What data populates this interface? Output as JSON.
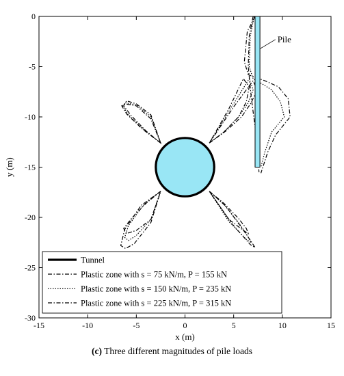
{
  "caption": {
    "letter": "(c)",
    "text": "Three different magnitudes of pile loads"
  },
  "chart_data": {
    "type": "line",
    "title": "",
    "xlabel": "x (m)",
    "ylabel": "y (m)",
    "xlim": [
      -15,
      15
    ],
    "ylim": [
      -30,
      0
    ],
    "xticks": [
      -15,
      -10,
      -5,
      0,
      5,
      10,
      15
    ],
    "yticks": [
      0,
      -5,
      -10,
      -15,
      -20,
      -25,
      -30
    ],
    "grid": false,
    "legend_position": "bottom",
    "colors": {
      "fill": "#99e6f5",
      "line": "#000000"
    },
    "tunnel": {
      "name": "Tunnel",
      "center": [
        0,
        -15
      ],
      "radius": 3
    },
    "pile": {
      "x": [
        7.2,
        7.7
      ],
      "y": [
        0,
        -15
      ]
    },
    "annotations": [
      {
        "text": "Pile",
        "point": [
          7.6,
          -3.2
        ],
        "label_at": [
          9.5,
          -2.3
        ]
      }
    ],
    "series": [
      {
        "name": "Plastic zone with s = 75 kN/m, P = 155 kN",
        "style": "dash-dot",
        "lobes": [
          {
            "x": [
              -2.5,
              -4,
              -5.5,
              -6.3,
              -6,
              -5,
              -3.5,
              -2.5
            ],
            "y": [
              -12.6,
              -11.4,
              -9.9,
              -8.9,
              -8.4,
              -8.7,
              -9.8,
              -12.6
            ]
          },
          {
            "x": [
              2.5,
              4,
              5.5,
              6.3,
              6.6,
              6,
              4.5,
              2.5
            ],
            "y": [
              -12.6,
              -11.5,
              -10,
              -8.5,
              -7,
              -6.2,
              -9.2,
              -12.6
            ]
          },
          {
            "x": [
              -2.5,
              -4,
              -5.5,
              -6.3,
              -6,
              -5,
              -3.5,
              -2.5
            ],
            "y": [
              -17.4,
              -18.6,
              -20.1,
              -21.1,
              -21.6,
              -21.3,
              -20.2,
              -17.4
            ]
          },
          {
            "x": [
              2.5,
              4,
              5.5,
              6.3,
              6.5,
              6,
              4.5,
              2.5
            ],
            "y": [
              -17.4,
              -18.6,
              -20.1,
              -21.1,
              -21.6,
              -21.3,
              -20.2,
              -17.4
            ]
          }
        ],
        "pile_zone": {
          "x": [
            7,
            6.6,
            6.5,
            6.8,
            7.2,
            7.5,
            7.6
          ],
          "y": [
            0,
            -2,
            -5,
            -8,
            -11,
            -14,
            -15.5
          ]
        }
      },
      {
        "name": "Plastic zone with s = 150 kN/m, P = 235 kN",
        "style": "dotted",
        "lobes": [
          {
            "x": [
              -2.5,
              -4.2,
              -5.8,
              -6.4,
              -6.1,
              -5,
              -3.5,
              -2.5
            ],
            "y": [
              -12.6,
              -11.3,
              -9.8,
              -8.9,
              -8.6,
              -8.8,
              -10,
              -12.6
            ]
          },
          {
            "x": [
              2.5,
              4,
              5.5,
              6.5,
              7,
              6.6,
              4.8,
              2.5
            ],
            "y": [
              -12.6,
              -11.5,
              -10,
              -8.6,
              -7.3,
              -6.2,
              -9,
              -12.6
            ]
          },
          {
            "x": [
              -2.5,
              -4.2,
              -5.8,
              -6.2,
              -5.8,
              -5,
              -3.5,
              -2.5
            ],
            "y": [
              -17.4,
              -18.7,
              -20.8,
              -22,
              -22.3,
              -21.8,
              -20.2,
              -17.4
            ]
          },
          {
            "x": [
              2.5,
              4,
              5.5,
              6.4,
              6.8,
              6.3,
              4.5,
              2.5
            ],
            "y": [
              -17.4,
              -18.7,
              -20.5,
              -21.8,
              -22.5,
              -22.2,
              -20.4,
              -17.4
            ]
          }
        ],
        "pile_zone": {
          "x": [
            7.1,
            6.7,
            6.6,
            7,
            7.9,
            8.9,
            9.8,
            10.2,
            8.9,
            8.2,
            7.8
          ],
          "y": [
            0,
            -2,
            -5,
            -6.2,
            -6.7,
            -7.3,
            -8.5,
            -10,
            -11.5,
            -13.5,
            -15
          ]
        }
      },
      {
        "name": "Plastic zone with s = 225 kN/m, P = 315 kN",
        "style": "dash-dot",
        "lobes": [
          {
            "x": [
              -2.5,
              -4.4,
              -6,
              -6.5,
              -6.2,
              -5,
              -3.5,
              -2.5
            ],
            "y": [
              -12.6,
              -11.2,
              -9.7,
              -8.9,
              -8.7,
              -8.9,
              -10.2,
              -12.6
            ]
          },
          {
            "x": [
              2.5,
              4.2,
              5.8,
              6.8,
              7.4,
              7,
              5,
              2.5
            ],
            "y": [
              -12.6,
              -11.4,
              -10,
              -8.6,
              -7.3,
              -6.4,
              -9,
              -12.6
            ]
          },
          {
            "x": [
              -2.5,
              -4.5,
              -6.2,
              -6.6,
              -6.1,
              -5.2,
              -3.5,
              -2.5
            ],
            "y": [
              -17.4,
              -18.8,
              -21.2,
              -22.8,
              -23.1,
              -22.6,
              -20.5,
              -17.4
            ]
          },
          {
            "x": [
              2.5,
              4.2,
              5.8,
              6.8,
              7.2,
              6.7,
              4.8,
              2.5
            ],
            "y": [
              -17.4,
              -18.9,
              -21,
              -22.4,
              -23,
              -22.7,
              -20.6,
              -17.4
            ]
          }
        ],
        "pile_zone": {
          "x": [
            7.2,
            6.4,
            6.1,
            6.5,
            8.2,
            9.6,
            10.6,
            10.8,
            9.3,
            8.5,
            7.8
          ],
          "y": [
            0,
            -1.5,
            -4.5,
            -5.8,
            -6.4,
            -7,
            -8.2,
            -10,
            -11.8,
            -13.5,
            -15.6
          ]
        }
      }
    ]
  }
}
